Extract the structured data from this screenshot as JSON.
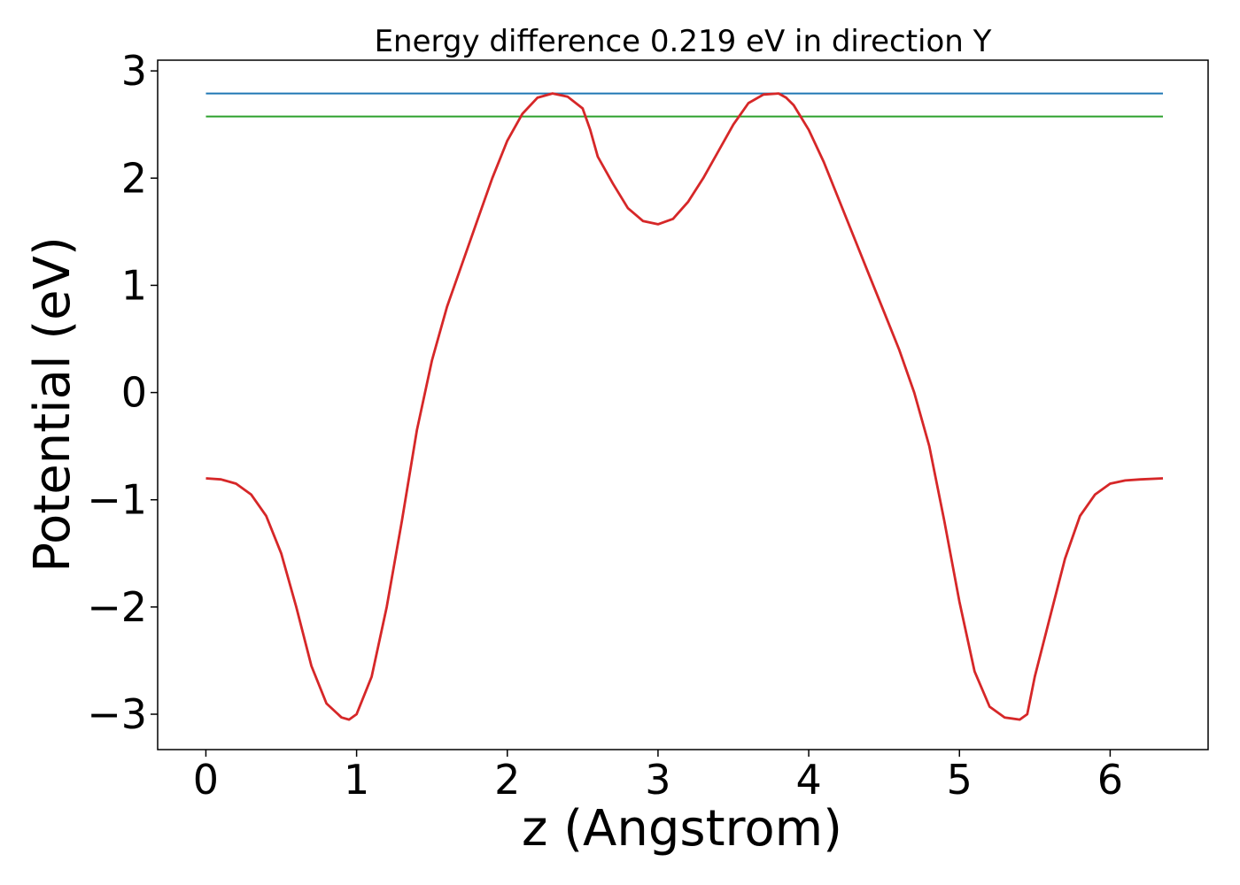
{
  "chart_data": {
    "type": "line",
    "title": "Energy difference 0.219 eV in direction Y",
    "xlabel": "z (Angstrom)",
    "ylabel": "Potential (eV)",
    "xlim": [
      -0.32,
      6.65
    ],
    "ylim": [
      -3.33,
      3.1
    ],
    "x_ticks": [
      0,
      1,
      2,
      3,
      4,
      5,
      6
    ],
    "y_ticks": [
      -3,
      -2,
      -1,
      0,
      1,
      2,
      3
    ],
    "x_tick_labels": [
      "0",
      "1",
      "2",
      "3",
      "4",
      "5",
      "6"
    ],
    "y_tick_labels": [
      "−3",
      "−2",
      "−1",
      "0",
      "1",
      "2",
      "3"
    ],
    "grid": false,
    "series": [
      {
        "color": "#1f77b4",
        "x": [
          0,
          6.35
        ],
        "y": [
          2.79,
          2.79
        ]
      },
      {
        "color": "#2ca02c",
        "x": [
          0,
          6.35
        ],
        "y": [
          2.575,
          2.575
        ]
      },
      {
        "color": "#d62728",
        "x": [
          0,
          0.1,
          0.2,
          0.3,
          0.4,
          0.5,
          0.6,
          0.7,
          0.8,
          0.9,
          0.95,
          1.0,
          1.1,
          1.2,
          1.3,
          1.4,
          1.5,
          1.6,
          1.7,
          1.8,
          1.9,
          2.0,
          2.1,
          2.2,
          2.3,
          2.4,
          2.5,
          2.55,
          2.6,
          2.7,
          2.8,
          2.9,
          3.0,
          3.1,
          3.2,
          3.3,
          3.4,
          3.5,
          3.6,
          3.7,
          3.8,
          3.85,
          3.9,
          4.0,
          4.1,
          4.2,
          4.3,
          4.4,
          4.5,
          4.6,
          4.7,
          4.8,
          4.9,
          5.0,
          5.1,
          5.2,
          5.3,
          5.4,
          5.45,
          5.5,
          5.6,
          5.7,
          5.8,
          5.9,
          6.0,
          6.1,
          6.2,
          6.35
        ],
        "y": [
          -0.8,
          -0.81,
          -0.85,
          -0.95,
          -1.15,
          -1.5,
          -2.0,
          -2.55,
          -2.9,
          -3.03,
          -3.05,
          -3.0,
          -2.65,
          -2.0,
          -1.2,
          -0.35,
          0.3,
          0.8,
          1.2,
          1.6,
          2.0,
          2.35,
          2.6,
          2.75,
          2.79,
          2.76,
          2.65,
          2.45,
          2.2,
          1.95,
          1.72,
          1.6,
          1.57,
          1.62,
          1.78,
          2.0,
          2.25,
          2.5,
          2.7,
          2.78,
          2.79,
          2.75,
          2.68,
          2.45,
          2.15,
          1.8,
          1.45,
          1.1,
          0.75,
          0.4,
          0.0,
          -0.5,
          -1.2,
          -1.95,
          -2.6,
          -2.93,
          -3.03,
          -3.05,
          -3.0,
          -2.65,
          -2.1,
          -1.55,
          -1.15,
          -0.95,
          -0.85,
          -0.82,
          -0.81,
          -0.8
        ]
      }
    ]
  }
}
